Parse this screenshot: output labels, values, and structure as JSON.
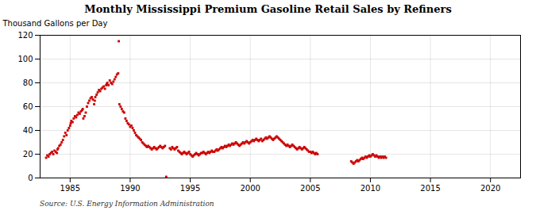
{
  "chart_data": {
    "type": "scatter",
    "title": "Monthly Mississippi Premium Gasoline Retail Sales by Refiners",
    "ylabel": "Thousand Gallons per Day",
    "caption": "Source: U.S. Energy Information Administration",
    "color": "#cc0000",
    "marker": "square",
    "grid": true,
    "xlim": [
      1982.5,
      2022.5
    ],
    "ylim": [
      0,
      120
    ],
    "xticks": [
      1985,
      1990,
      1995,
      2000,
      2005,
      2010,
      2015,
      2020
    ],
    "yticks": [
      0,
      20,
      40,
      60,
      80,
      100,
      120
    ],
    "x": [
      1983.0,
      1983.1,
      1983.2,
      1983.3,
      1983.4,
      1983.5,
      1983.6,
      1983.7,
      1983.8,
      1983.9,
      1983.95,
      1984.0,
      1984.1,
      1984.2,
      1984.3,
      1984.4,
      1984.5,
      1984.6,
      1984.7,
      1984.8,
      1984.9,
      1985.0,
      1985.05,
      1985.1,
      1985.2,
      1985.3,
      1985.4,
      1985.5,
      1985.6,
      1985.7,
      1985.8,
      1985.9,
      1986.0,
      1986.05,
      1986.1,
      1986.2,
      1986.3,
      1986.4,
      1986.5,
      1986.6,
      1986.7,
      1986.8,
      1986.9,
      1987.0,
      1987.05,
      1987.1,
      1987.2,
      1987.3,
      1987.4,
      1987.5,
      1987.6,
      1987.7,
      1987.8,
      1987.9,
      1988.0,
      1988.05,
      1988.1,
      1988.2,
      1988.3,
      1988.4,
      1988.5,
      1988.6,
      1988.7,
      1988.8,
      1988.9,
      1989.0,
      1989.05,
      1989.1,
      1989.2,
      1989.3,
      1989.4,
      1989.5,
      1989.6,
      1989.7,
      1989.8,
      1989.9,
      1990.0,
      1990.1,
      1990.2,
      1990.3,
      1990.4,
      1990.5,
      1990.6,
      1990.7,
      1990.8,
      1990.9,
      1991.0,
      1991.1,
      1991.2,
      1991.3,
      1991.4,
      1991.5,
      1991.6,
      1991.7,
      1991.8,
      1991.9,
      1992.0,
      1992.1,
      1992.2,
      1992.3,
      1992.4,
      1992.5,
      1992.6,
      1992.7,
      1992.8,
      1992.9,
      1993.0,
      1993.3,
      1993.4,
      1993.5,
      1993.6,
      1993.7,
      1993.8,
      1993.9,
      1994.0,
      1994.1,
      1994.2,
      1994.3,
      1994.4,
      1994.5,
      1994.6,
      1994.7,
      1994.8,
      1994.9,
      1995.0,
      1995.1,
      1995.2,
      1995.3,
      1995.4,
      1995.5,
      1995.6,
      1995.7,
      1995.8,
      1995.9,
      1996.0,
      1996.1,
      1996.2,
      1996.3,
      1996.4,
      1996.5,
      1996.6,
      1996.7,
      1996.8,
      1996.9,
      1997.0,
      1997.1,
      1997.2,
      1997.3,
      1997.4,
      1997.5,
      1997.6,
      1997.7,
      1997.8,
      1997.9,
      1998.0,
      1998.1,
      1998.2,
      1998.3,
      1998.4,
      1998.5,
      1998.6,
      1998.7,
      1998.8,
      1998.9,
      1999.0,
      1999.1,
      1999.2,
      1999.3,
      1999.4,
      1999.5,
      1999.6,
      1999.7,
      1999.8,
      1999.9,
      2000.0,
      2000.1,
      2000.2,
      2000.3,
      2000.4,
      2000.5,
      2000.6,
      2000.7,
      2000.8,
      2000.9,
      2001.0,
      2001.1,
      2001.2,
      2001.3,
      2001.4,
      2001.5,
      2001.6,
      2001.7,
      2001.8,
      2001.9,
      2002.0,
      2002.1,
      2002.2,
      2002.3,
      2002.4,
      2002.5,
      2002.6,
      2002.7,
      2002.8,
      2002.9,
      2003.0,
      2003.1,
      2003.2,
      2003.3,
      2003.4,
      2003.5,
      2003.6,
      2003.7,
      2003.8,
      2003.9,
      2004.0,
      2004.1,
      2004.2,
      2004.3,
      2004.4,
      2004.5,
      2004.6,
      2004.7,
      2004.8,
      2004.9,
      2005.0,
      2005.1,
      2005.2,
      2005.3,
      2005.4,
      2005.5,
      2005.6,
      2008.4,
      2008.5,
      2008.6,
      2008.7,
      2008.8,
      2008.9,
      2009.0,
      2009.1,
      2009.2,
      2009.3,
      2009.4,
      2009.5,
      2009.6,
      2009.7,
      2009.8,
      2009.9,
      2010.0,
      2010.1,
      2010.2,
      2010.3,
      2010.4,
      2010.5,
      2010.6,
      2010.7,
      2010.8,
      2010.9,
      2011.0,
      2011.1,
      2011.2,
      2011.3
    ],
    "values": [
      17,
      19,
      18,
      20,
      21,
      22,
      20,
      23,
      22,
      21,
      24,
      25,
      27,
      28,
      30,
      32,
      35,
      38,
      36,
      40,
      42,
      44,
      46,
      48,
      47,
      50,
      52,
      51,
      53,
      55,
      54,
      56,
      57,
      58,
      50,
      52,
      55,
      60,
      63,
      65,
      67,
      68,
      66,
      62,
      65,
      68,
      70,
      72,
      74,
      73,
      75,
      76,
      77,
      75,
      78,
      79,
      80,
      78,
      82,
      80,
      79,
      81,
      83,
      85,
      87,
      88,
      115,
      62,
      60,
      58,
      56,
      55,
      50,
      48,
      46,
      45,
      43,
      44,
      42,
      40,
      38,
      36,
      35,
      34,
      33,
      32,
      30,
      29,
      28,
      27,
      26,
      27,
      26,
      25,
      24,
      25,
      26,
      25,
      24,
      25,
      26,
      27,
      26,
      25,
      26,
      27,
      1,
      25,
      24,
      26,
      25,
      24,
      25,
      26,
      23,
      22,
      21,
      20,
      21,
      22,
      21,
      20,
      21,
      22,
      20,
      19,
      18,
      19,
      20,
      21,
      20,
      19,
      20,
      21,
      21,
      22,
      21,
      20,
      21,
      22,
      21,
      22,
      23,
      22,
      22,
      23,
      24,
      23,
      24,
      25,
      26,
      25,
      26,
      27,
      26,
      27,
      28,
      27,
      28,
      29,
      28,
      29,
      30,
      29,
      28,
      27,
      28,
      29,
      30,
      29,
      30,
      31,
      30,
      29,
      30,
      31,
      32,
      31,
      32,
      33,
      32,
      31,
      32,
      33,
      31,
      32,
      33,
      34,
      33,
      34,
      35,
      34,
      33,
      32,
      33,
      34,
      35,
      34,
      33,
      32,
      31,
      30,
      29,
      28,
      27,
      28,
      27,
      26,
      27,
      28,
      27,
      26,
      25,
      24,
      25,
      26,
      25,
      24,
      25,
      26,
      25,
      24,
      23,
      22,
      22,
      21,
      22,
      21,
      20,
      21,
      20,
      14,
      13,
      12,
      13,
      14,
      15,
      14,
      15,
      16,
      17,
      16,
      17,
      18,
      17,
      18,
      19,
      18,
      19,
      20,
      19,
      18,
      19,
      18,
      17,
      18,
      17,
      18,
      17,
      18,
      17
    ]
  }
}
